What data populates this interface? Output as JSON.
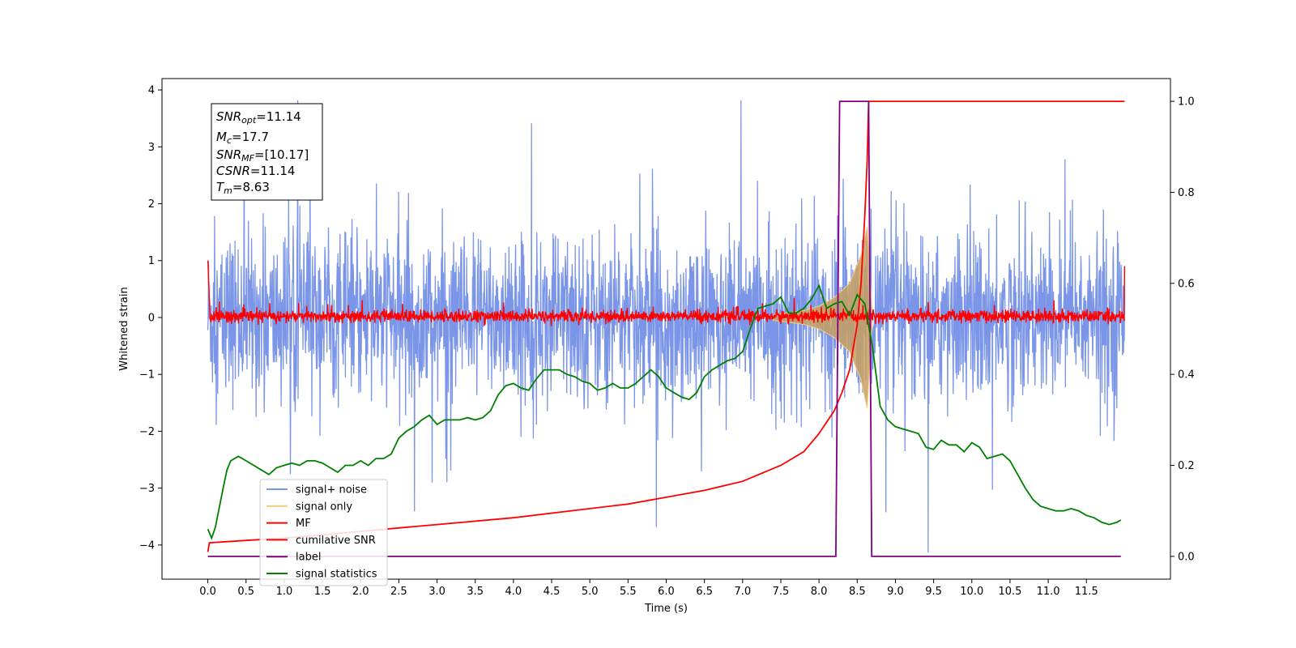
{
  "chart_data": {
    "type": "line",
    "title": "",
    "xlabel": "Time (s)",
    "ylabel": "Whitened strain",
    "xlim": [
      -0.6,
      12.6
    ],
    "ylim": [
      -4.6,
      4.2
    ],
    "y2lim": [
      -0.05,
      1.05
    ],
    "x_ticks": [
      "0.0",
      "0.5",
      "1.0",
      "1.5",
      "2.0",
      "2.5",
      "3.0",
      "3.5",
      "4.0",
      "4.5",
      "5.0",
      "5.5",
      "6.0",
      "6.5",
      "7.0",
      "7.5",
      "8.0",
      "8.5",
      "9.0",
      "9.5",
      "10.0",
      "10.5",
      "11.0",
      "11.5"
    ],
    "y_ticks": [
      "4",
      "3",
      "2",
      "1",
      "0",
      "−1",
      "−2",
      "−3",
      "−4"
    ],
    "y2_ticks": [
      "1.0",
      "0.8",
      "0.6",
      "0.4",
      "0.2",
      "0.0"
    ],
    "grid": false,
    "legend_position": "lower-left",
    "annotation": {
      "snr_opt": "=11.14",
      "mc": "=17.7",
      "snr_mf": "=[10.17]",
      "csnr": "=11.14",
      "tm": "=8.63"
    },
    "series": [
      {
        "name": "signal+ noise",
        "color": "#7b96e8",
        "axis": "left",
        "style": "noise band",
        "envelope_x": [
          0.0,
          12.0
        ],
        "typical_range": [
          -1.5,
          1.5
        ],
        "peak_range": [
          -4.15,
          3.82
        ]
      },
      {
        "name": "signal only",
        "color": "#f9c97a",
        "axis": "left",
        "style": "chirp",
        "x": [
          7.4,
          7.8,
          8.0,
          8.2,
          8.4,
          8.55,
          8.63,
          8.7
        ],
        "amplitude": [
          0.05,
          0.12,
          0.2,
          0.35,
          0.6,
          1.1,
          1.6,
          0.0
        ]
      },
      {
        "name": "MF",
        "color": "#ff0000",
        "axis": "left",
        "style": "noise band",
        "envelope_x": [
          0.0,
          12.0
        ],
        "typical_range": [
          -0.12,
          0.18
        ],
        "start_value": 1.0,
        "end_value": 0.9
      },
      {
        "name": "cumilative SNR",
        "color": "#ff0000",
        "axis": "right",
        "x": [
          0.0,
          0.02,
          0.5,
          1.0,
          2.0,
          3.0,
          4.0,
          5.0,
          5.5,
          6.0,
          6.5,
          7.0,
          7.5,
          7.8,
          8.0,
          8.2,
          8.3,
          8.4,
          8.5,
          8.55,
          8.6,
          8.63,
          8.65,
          9.0,
          10.0,
          11.0,
          12.0
        ],
        "y": [
          0.01,
          0.03,
          0.035,
          0.04,
          0.055,
          0.07,
          0.085,
          0.105,
          0.115,
          0.13,
          0.145,
          0.165,
          0.2,
          0.23,
          0.27,
          0.32,
          0.36,
          0.41,
          0.51,
          0.6,
          0.75,
          0.87,
          1.0,
          1.0,
          1.0,
          1.0,
          1.0
        ]
      },
      {
        "name": "label",
        "color": "#800080",
        "axis": "right",
        "x": [
          0.0,
          8.22,
          8.27,
          8.6,
          8.65,
          8.69,
          11.95
        ],
        "y": [
          0.0,
          0.0,
          1.0,
          1.0,
          1.0,
          0.0,
          0.0
        ]
      },
      {
        "name": "signal statistics",
        "color": "#008000",
        "axis": "right",
        "x": [
          0.0,
          0.05,
          0.1,
          0.2,
          0.25,
          0.3,
          0.4,
          0.5,
          0.6,
          0.7,
          0.8,
          0.9,
          1.0,
          1.1,
          1.2,
          1.3,
          1.4,
          1.5,
          1.6,
          1.7,
          1.8,
          1.9,
          2.0,
          2.1,
          2.2,
          2.3,
          2.4,
          2.5,
          2.6,
          2.7,
          2.8,
          2.9,
          3.0,
          3.1,
          3.2,
          3.3,
          3.4,
          3.5,
          3.6,
          3.7,
          3.8,
          3.9,
          4.0,
          4.1,
          4.2,
          4.3,
          4.4,
          4.5,
          4.6,
          4.7,
          4.8,
          4.9,
          5.0,
          5.1,
          5.2,
          5.3,
          5.4,
          5.5,
          5.6,
          5.7,
          5.8,
          5.9,
          6.0,
          6.1,
          6.2,
          6.3,
          6.4,
          6.5,
          6.6,
          6.7,
          6.8,
          6.9,
          7.0,
          7.1,
          7.2,
          7.3,
          7.4,
          7.5,
          7.6,
          7.7,
          7.8,
          7.9,
          8.0,
          8.1,
          8.2,
          8.3,
          8.4,
          8.5,
          8.6,
          8.7,
          8.8,
          8.9,
          9.0,
          9.1,
          9.2,
          9.3,
          9.4,
          9.5,
          9.6,
          9.7,
          9.8,
          9.9,
          10.0,
          10.1,
          10.2,
          10.3,
          10.4,
          10.5,
          10.6,
          10.7,
          10.8,
          10.9,
          11.0,
          11.1,
          11.2,
          11.3,
          11.4,
          11.5,
          11.6,
          11.7,
          11.8,
          11.9,
          11.95
        ],
        "y": [
          0.06,
          0.04,
          0.065,
          0.15,
          0.19,
          0.21,
          0.22,
          0.21,
          0.2,
          0.19,
          0.18,
          0.195,
          0.2,
          0.205,
          0.2,
          0.21,
          0.21,
          0.205,
          0.195,
          0.185,
          0.2,
          0.2,
          0.21,
          0.2,
          0.215,
          0.215,
          0.225,
          0.26,
          0.275,
          0.285,
          0.3,
          0.31,
          0.29,
          0.3,
          0.3,
          0.3,
          0.305,
          0.3,
          0.305,
          0.32,
          0.355,
          0.375,
          0.38,
          0.37,
          0.365,
          0.39,
          0.41,
          0.41,
          0.41,
          0.4,
          0.395,
          0.385,
          0.38,
          0.365,
          0.37,
          0.38,
          0.37,
          0.37,
          0.38,
          0.395,
          0.41,
          0.395,
          0.37,
          0.36,
          0.35,
          0.345,
          0.36,
          0.395,
          0.41,
          0.42,
          0.43,
          0.435,
          0.45,
          0.5,
          0.545,
          0.55,
          0.555,
          0.57,
          0.535,
          0.535,
          0.545,
          0.565,
          0.595,
          0.545,
          0.555,
          0.56,
          0.53,
          0.575,
          0.555,
          0.46,
          0.33,
          0.3,
          0.285,
          0.28,
          0.275,
          0.27,
          0.24,
          0.235,
          0.255,
          0.245,
          0.245,
          0.23,
          0.25,
          0.24,
          0.215,
          0.22,
          0.225,
          0.21,
          0.18,
          0.15,
          0.125,
          0.11,
          0.105,
          0.1,
          0.1,
          0.105,
          0.1,
          0.09,
          0.085,
          0.075,
          0.07,
          0.075,
          0.08
        ]
      }
    ]
  }
}
